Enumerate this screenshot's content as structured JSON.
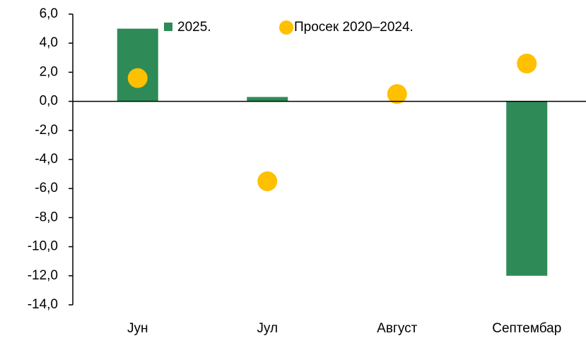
{
  "chart_data": {
    "type": "bar",
    "categories": [
      "Јун",
      "Јул",
      "Август",
      "Септембар"
    ],
    "series": [
      {
        "name": "2025.",
        "type": "bar",
        "color": "#2e8b57",
        "values": [
          5.0,
          0.3,
          null,
          -12.0
        ]
      },
      {
        "name": "Просек 2020–2024.",
        "type": "scatter",
        "color": "#ffc000",
        "values": [
          1.6,
          -5.5,
          0.5,
          2.6
        ]
      }
    ],
    "ylim": [
      -14,
      6
    ],
    "yticks": [
      {
        "value": -14,
        "label": "-14,0"
      },
      {
        "value": -12,
        "label": "-12,0"
      },
      {
        "value": -10,
        "label": "-10,0"
      },
      {
        "value": -8,
        "label": "-8,0"
      },
      {
        "value": -6,
        "label": "-6,0"
      },
      {
        "value": -4,
        "label": "-4,0"
      },
      {
        "value": -2,
        "label": "-2,0"
      },
      {
        "value": 0,
        "label": "0,0"
      },
      {
        "value": 2,
        "label": "2,0"
      },
      {
        "value": 4,
        "label": "4,0"
      },
      {
        "value": 6,
        "label": "6,0"
      }
    ],
    "legend": "top"
  }
}
